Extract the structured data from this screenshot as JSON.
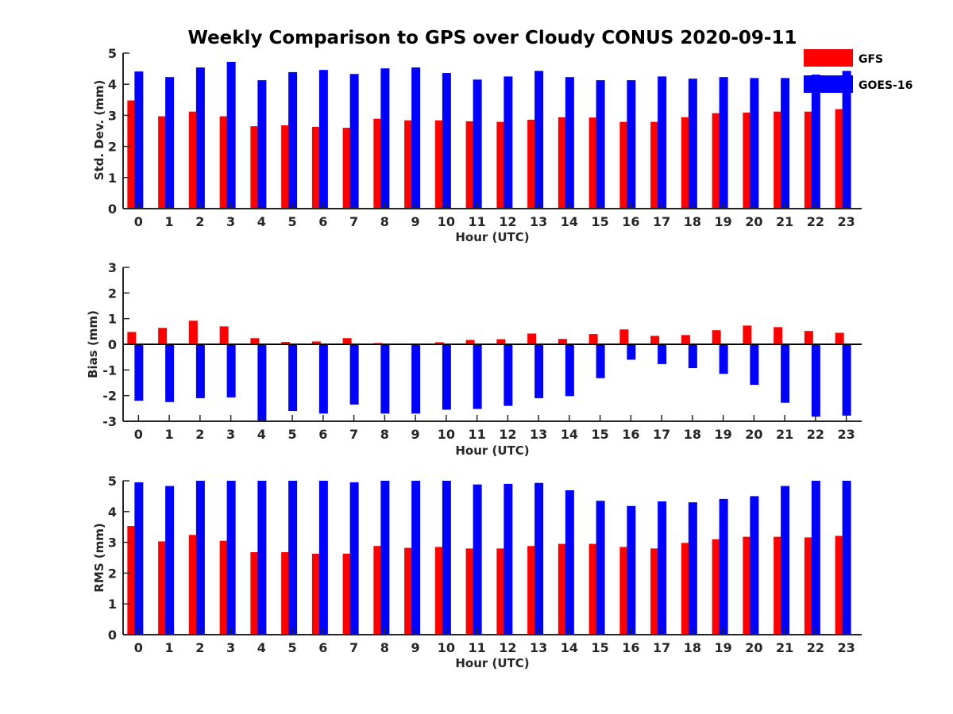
{
  "title": "Weekly Comparison to GPS over Cloudy CONUS 2020-09-11",
  "legend": {
    "placement": "top-right",
    "entries": [
      {
        "name": "GFS",
        "color": "#ff0000"
      },
      {
        "name": "GOES-16",
        "color": "#0000ff"
      }
    ]
  },
  "chart_data": [
    {
      "type": "bar",
      "xlabel": "Hour (UTC)",
      "ylabel": "Std. Dev. (mm)",
      "ylim": [
        0,
        5
      ],
      "yticks": [
        0,
        1,
        2,
        3,
        4,
        5
      ],
      "categories": [
        "0",
        "1",
        "2",
        "3",
        "4",
        "5",
        "6",
        "7",
        "8",
        "9",
        "10",
        "11",
        "12",
        "13",
        "14",
        "15",
        "16",
        "17",
        "18",
        "19",
        "20",
        "21",
        "22",
        "23"
      ],
      "series": [
        {
          "name": "GFS",
          "color": "#ff0000",
          "values": [
            3.48,
            2.97,
            3.12,
            2.97,
            2.65,
            2.68,
            2.63,
            2.6,
            2.89,
            2.84,
            2.84,
            2.81,
            2.79,
            2.86,
            2.94,
            2.93,
            2.79,
            2.79,
            2.94,
            3.07,
            3.09,
            3.12,
            3.12,
            3.2
          ]
        },
        {
          "name": "GOES-16",
          "color": "#0000ff",
          "values": [
            4.41,
            4.23,
            4.54,
            4.72,
            4.13,
            4.39,
            4.46,
            4.33,
            4.51,
            4.54,
            4.36,
            4.15,
            4.25,
            4.43,
            4.23,
            4.13,
            4.13,
            4.25,
            4.18,
            4.23,
            4.2,
            4.2,
            4.31,
            4.43
          ]
        }
      ]
    },
    {
      "type": "bar",
      "xlabel": "Hour (UTC)",
      "ylabel": "Bias (mm)",
      "ylim": [
        -3,
        3
      ],
      "yticks": [
        -3,
        -2,
        -1,
        0,
        1,
        2,
        3
      ],
      "categories": [
        "0",
        "1",
        "2",
        "3",
        "4",
        "5",
        "6",
        "7",
        "8",
        "9",
        "10",
        "11",
        "12",
        "13",
        "14",
        "15",
        "16",
        "17",
        "18",
        "19",
        "20",
        "21",
        "22",
        "23"
      ],
      "series": [
        {
          "name": "GFS",
          "color": "#ff0000",
          "values": [
            0.48,
            0.64,
            0.92,
            0.7,
            0.24,
            0.09,
            0.11,
            0.24,
            0.05,
            0.0,
            0.08,
            0.17,
            0.2,
            0.42,
            0.21,
            0.4,
            0.58,
            0.33,
            0.36,
            0.55,
            0.73,
            0.67,
            0.52,
            0.45
          ]
        },
        {
          "name": "GOES-16",
          "color": "#0000ff",
          "values": [
            -2.2,
            -2.25,
            -2.1,
            -2.07,
            -3.0,
            -2.6,
            -2.7,
            -2.35,
            -2.7,
            -2.7,
            -2.55,
            -2.52,
            -2.4,
            -2.1,
            -2.02,
            -1.32,
            -0.6,
            -0.77,
            -0.93,
            -1.15,
            -1.58,
            -2.28,
            -2.82,
            -2.78
          ]
        }
      ]
    },
    {
      "type": "bar",
      "xlabel": "Hour (UTC)",
      "ylabel": "RMS (mm)",
      "ylim": [
        0,
        5
      ],
      "yticks": [
        0,
        1,
        2,
        3,
        4,
        5
      ],
      "categories": [
        "0",
        "1",
        "2",
        "3",
        "4",
        "5",
        "6",
        "7",
        "8",
        "9",
        "10",
        "11",
        "12",
        "13",
        "14",
        "15",
        "16",
        "17",
        "18",
        "19",
        "20",
        "21",
        "22",
        "23"
      ],
      "series": [
        {
          "name": "GFS",
          "color": "#ff0000",
          "values": [
            3.53,
            3.03,
            3.24,
            3.05,
            2.68,
            2.68,
            2.63,
            2.63,
            2.88,
            2.82,
            2.85,
            2.8,
            2.8,
            2.88,
            2.95,
            2.95,
            2.85,
            2.8,
            2.98,
            3.1,
            3.18,
            3.18,
            3.16,
            3.21
          ]
        },
        {
          "name": "GOES-16",
          "color": "#0000ff",
          "values": [
            4.95,
            4.83,
            5.0,
            5.0,
            5.0,
            5.0,
            5.0,
            4.95,
            5.0,
            5.0,
            5.0,
            4.88,
            4.9,
            4.93,
            4.69,
            4.35,
            4.18,
            4.33,
            4.3,
            4.41,
            4.5,
            4.83,
            5.0,
            5.0
          ]
        }
      ]
    }
  ]
}
